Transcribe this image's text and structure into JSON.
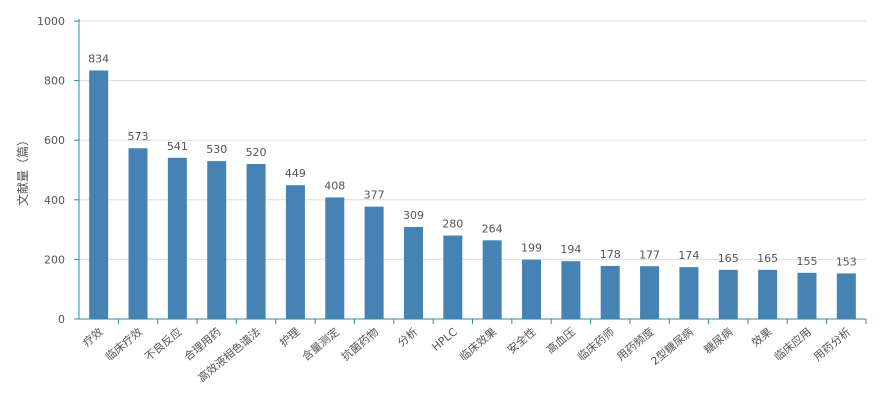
{
  "chart_data": {
    "type": "bar",
    "title": "",
    "xlabel": "",
    "ylabel": "文献量（篇）",
    "ylim": [
      0,
      1000
    ],
    "yticks": [
      0,
      200,
      400,
      600,
      800,
      1000
    ],
    "grid": true,
    "categories": [
      "疗效",
      "临床疗效",
      "不良反应",
      "合理用药",
      "高效液相色谱法",
      "护理",
      "含量测定",
      "抗菌药物",
      "分析",
      "HPLC",
      "临床效果",
      "安全性",
      "高血压",
      "临床药师",
      "用药频度",
      "2型糖尿病",
      "糖尿病",
      "效果",
      "临床应用",
      "用药分析"
    ],
    "values": [
      834,
      573,
      541,
      530,
      520,
      449,
      408,
      377,
      309,
      280,
      264,
      199,
      194,
      178,
      177,
      174,
      165,
      165,
      155,
      153
    ],
    "bar_color": "#4682b4",
    "axis_color": "#2a8ea0",
    "grid_color": "#dddddd"
  }
}
